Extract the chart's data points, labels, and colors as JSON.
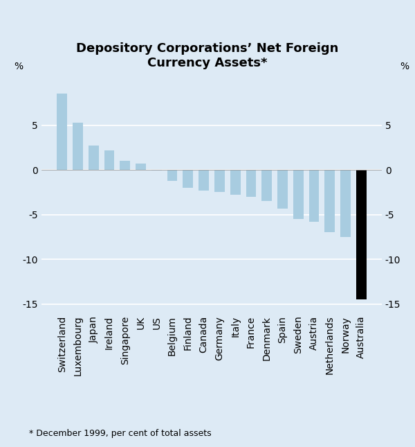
{
  "title": "Depository Corporations’ Net Foreign\nCurrency Assets*",
  "footnote": "* December 1999, per cent of total assets",
  "categories": [
    "Switzerland",
    "Luxembourg",
    "Japan",
    "Ireland",
    "Singapore",
    "UK",
    "US",
    "Belgium",
    "Finland",
    "Canada",
    "Germany",
    "Italy",
    "France",
    "Denmark",
    "Spain",
    "Sweden",
    "Austria",
    "Netherlands",
    "Norway",
    "Australia"
  ],
  "values": [
    8.5,
    5.3,
    2.7,
    2.2,
    1.0,
    0.7,
    -0.1,
    -1.2,
    -2.0,
    -2.3,
    -2.5,
    -2.8,
    -3.0,
    -3.5,
    -4.3,
    -5.5,
    -5.8,
    -7.0,
    -7.5,
    -14.5
  ],
  "bar_colors": [
    "#a8cce0",
    "#a8cce0",
    "#a8cce0",
    "#a8cce0",
    "#a8cce0",
    "#a8cce0",
    "#a8cce0",
    "#a8cce0",
    "#a8cce0",
    "#a8cce0",
    "#a8cce0",
    "#a8cce0",
    "#a8cce0",
    "#a8cce0",
    "#a8cce0",
    "#a8cce0",
    "#a8cce0",
    "#a8cce0",
    "#a8cce0",
    "#000000"
  ],
  "ylim": [
    -16,
    10
  ],
  "yticks": [
    -15,
    -10,
    -5,
    0,
    5
  ],
  "ylabel_left": "%",
  "ylabel_right": "%",
  "background_color": "#ddeaf5",
  "grid_color": "#ffffff",
  "title_fontsize": 13,
  "tick_fontsize": 10,
  "footnote_fontsize": 9,
  "bar_width": 0.65
}
